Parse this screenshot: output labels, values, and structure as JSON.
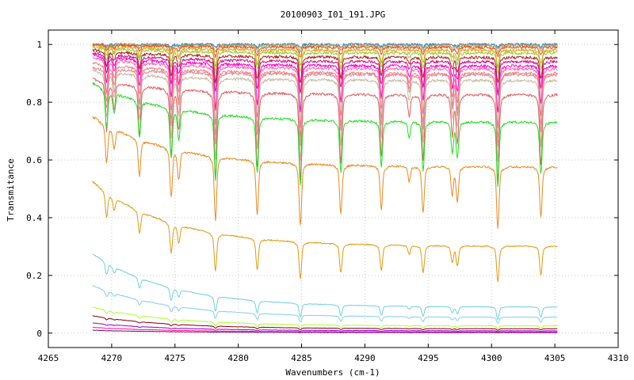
{
  "chart_data": {
    "type": "line",
    "title": "20100903_I01_191.JPG",
    "xlabel": "Wavenumbers (cm-1)",
    "ylabel": "Transmitance",
    "xlim": [
      4265,
      4310
    ],
    "ylim": [
      -0.05,
      1.05
    ],
    "xticks": [
      4265,
      4270,
      4275,
      4280,
      4285,
      4290,
      4295,
      4300,
      4305,
      4310
    ],
    "xtick_labels": [
      "4265",
      "4270",
      "4275",
      "4280",
      "4285",
      "4290",
      "4295",
      "4300",
      "4305",
      "4310"
    ],
    "yticks": [
      0,
      0.2,
      0.4,
      0.6,
      0.8,
      1
    ],
    "ytick_labels": [
      "0",
      "0.2",
      "0.4",
      "0.6",
      "0.8",
      "1"
    ],
    "grid": true,
    "x_start": 4268.5,
    "x_end": 4305.2,
    "absorption_lines": [
      {
        "x": 4269.6,
        "depth": 0.55
      },
      {
        "x": 4270.2,
        "depth": 0.3
      },
      {
        "x": 4272.2,
        "depth": 0.55
      },
      {
        "x": 4274.7,
        "depth": 0.75
      },
      {
        "x": 4275.3,
        "depth": 0.45
      },
      {
        "x": 4278.2,
        "depth": 1.0
      },
      {
        "x": 4281.5,
        "depth": 0.85
      },
      {
        "x": 4284.9,
        "depth": 1.0
      },
      {
        "x": 4288.1,
        "depth": 0.8
      },
      {
        "x": 4291.3,
        "depth": 0.7
      },
      {
        "x": 4293.5,
        "depth": 0.25
      },
      {
        "x": 4294.6,
        "depth": 0.75
      },
      {
        "x": 4296.9,
        "depth": 0.45
      },
      {
        "x": 4297.3,
        "depth": 0.55
      },
      {
        "x": 4300.5,
        "depth": 1.0
      },
      {
        "x": 4303.9,
        "depth": 0.8
      }
    ],
    "series": [
      {
        "color": "#f7a35c",
        "start": 1.0,
        "base": 1.0,
        "depth": 0.02
      },
      {
        "color": "#4682b4",
        "start": 1.0,
        "base": 1.0,
        "depth": 0.01
      },
      {
        "color": "#8fbc8f",
        "start": 1.0,
        "base": 0.995,
        "depth": 0.02
      },
      {
        "color": "#ff4500",
        "start": 1.0,
        "base": 0.99,
        "depth": 0.03
      },
      {
        "color": "#daa520",
        "start": 0.995,
        "base": 0.98,
        "depth": 0.05
      },
      {
        "color": "#9acd32",
        "start": 0.99,
        "base": 0.97,
        "depth": 0.06
      },
      {
        "color": "#b22222",
        "start": 0.98,
        "base": 0.955,
        "depth": 0.08
      },
      {
        "color": "#c71585",
        "start": 0.97,
        "base": 0.94,
        "depth": 0.1
      },
      {
        "color": "#ff00cc",
        "start": 0.965,
        "base": 0.925,
        "depth": 0.14
      },
      {
        "color": "#ff69b4",
        "start": 0.955,
        "base": 0.915,
        "depth": 0.18
      },
      {
        "color": "#f08080",
        "start": 0.935,
        "base": 0.9,
        "depth": 0.2
      },
      {
        "color": "#e08890",
        "start": 0.92,
        "base": 0.895,
        "depth": 0.22
      },
      {
        "color": "#c8b8a0",
        "start": 0.91,
        "base": 0.875,
        "depth": 0.25
      },
      {
        "color": "#e06060",
        "start": 0.88,
        "base": 0.825,
        "depth": 0.27
      },
      {
        "color": "#22dd22",
        "start": 0.865,
        "base": 0.73,
        "depth": 0.2
      },
      {
        "color": "#e88a20",
        "start": 0.75,
        "base": 0.575,
        "depth": 0.19
      },
      {
        "color": "#e09a10",
        "start": 0.525,
        "base": 0.3,
        "depth": 0.11
      },
      {
        "color": "#6fd0e0",
        "start": 0.275,
        "base": 0.09,
        "depth": 0.04
      },
      {
        "color": "#87ceeb",
        "start": 0.165,
        "base": 0.055,
        "depth": 0.02
      },
      {
        "color": "#adff2f",
        "start": 0.09,
        "base": 0.025,
        "depth": 0.01
      },
      {
        "color": "#8b0000",
        "start": 0.06,
        "base": 0.015,
        "depth": 0.005
      },
      {
        "color": "#9400d3",
        "start": 0.035,
        "base": 0.008,
        "depth": 0.003
      },
      {
        "color": "#ff1493",
        "start": 0.02,
        "base": 0.004,
        "depth": 0.002
      },
      {
        "color": "#800080",
        "start": 0.01,
        "base": 0.002,
        "depth": 0.001
      }
    ]
  }
}
